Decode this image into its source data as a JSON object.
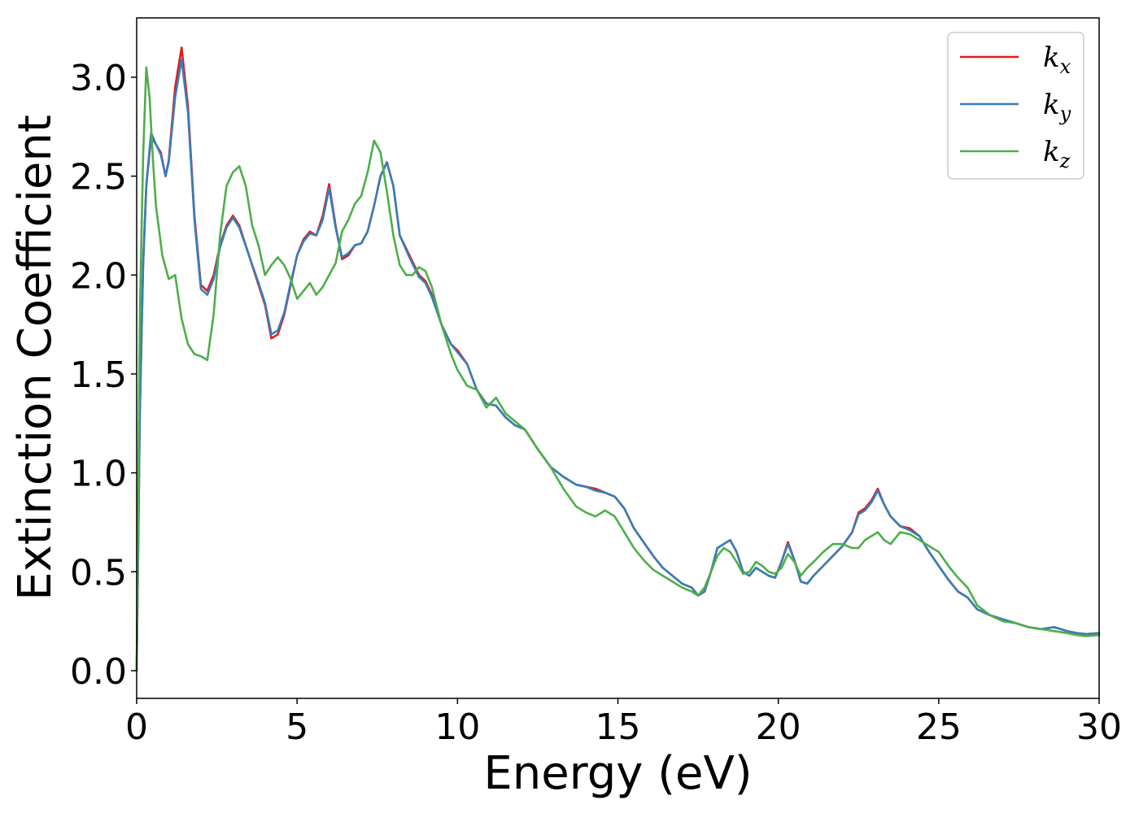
{
  "chart_data": {
    "type": "line",
    "xlabel": "Energy (eV)",
    "ylabel": "Extinction Coefficient",
    "xlim": [
      0,
      30
    ],
    "ylim": [
      -0.14,
      3.3
    ],
    "xticks": [
      0,
      5,
      10,
      15,
      20,
      25,
      30
    ],
    "xtick_labels": [
      "0",
      "5",
      "10",
      "15",
      "20",
      "25",
      "30"
    ],
    "yticks": [
      0.0,
      0.5,
      1.0,
      1.5,
      2.0,
      2.5,
      3.0
    ],
    "ytick_labels": [
      "0.0",
      "0.5",
      "1.0",
      "1.5",
      "2.0",
      "2.5",
      "3.0"
    ],
    "grid": false,
    "legend_position": "top-right",
    "series": [
      {
        "name": "k",
        "subscript": "x",
        "color": "#e41a1c",
        "x": [
          0,
          0.1,
          0.2,
          0.3,
          0.45,
          0.6,
          0.75,
          0.9,
          1.0,
          1.2,
          1.4,
          1.6,
          1.8,
          2.0,
          2.2,
          2.4,
          2.6,
          2.8,
          3.0,
          3.2,
          3.5,
          3.8,
          4.0,
          4.2,
          4.4,
          4.6,
          4.8,
          5.0,
          5.2,
          5.4,
          5.6,
          5.8,
          6.0,
          6.2,
          6.4,
          6.6,
          6.8,
          7.0,
          7.2,
          7.4,
          7.6,
          7.8,
          8.0,
          8.2,
          8.5,
          8.8,
          9.0,
          9.2,
          9.5,
          9.8,
          10.0,
          10.3,
          10.6,
          10.9,
          11.2,
          11.5,
          11.8,
          12.1,
          12.5,
          12.9,
          13.3,
          13.7,
          14.0,
          14.3,
          14.6,
          14.9,
          15.2,
          15.5,
          15.8,
          16.1,
          16.4,
          16.7,
          17.0,
          17.3,
          17.5,
          17.7,
          17.9,
          18.1,
          18.3,
          18.5,
          18.7,
          18.9,
          19.1,
          19.3,
          19.5,
          19.7,
          19.9,
          20.1,
          20.3,
          20.5,
          20.7,
          20.9,
          21.1,
          21.4,
          21.7,
          22.0,
          22.3,
          22.5,
          22.7,
          22.9,
          23.1,
          23.3,
          23.5,
          23.8,
          24.1,
          24.4,
          24.7,
          25.0,
          25.3,
          25.6,
          25.9,
          26.2,
          26.6,
          27.0,
          27.4,
          27.8,
          28.2,
          28.6,
          29.0,
          29.3,
          29.6,
          30.0
        ],
        "y": [
          0.0,
          1.3,
          2.05,
          2.45,
          2.7,
          2.66,
          2.62,
          2.5,
          2.58,
          2.95,
          3.15,
          2.85,
          2.3,
          1.95,
          1.92,
          2.0,
          2.15,
          2.25,
          2.3,
          2.25,
          2.1,
          1.95,
          1.85,
          1.68,
          1.7,
          1.8,
          1.95,
          2.1,
          2.18,
          2.22,
          2.2,
          2.3,
          2.46,
          2.25,
          2.08,
          2.1,
          2.15,
          2.16,
          2.22,
          2.35,
          2.5,
          2.57,
          2.45,
          2.2,
          2.1,
          2.0,
          1.97,
          1.9,
          1.75,
          1.65,
          1.62,
          1.55,
          1.42,
          1.35,
          1.34,
          1.28,
          1.24,
          1.22,
          1.12,
          1.03,
          0.98,
          0.94,
          0.93,
          0.92,
          0.9,
          0.88,
          0.82,
          0.72,
          0.65,
          0.58,
          0.52,
          0.48,
          0.44,
          0.42,
          0.38,
          0.4,
          0.5,
          0.62,
          0.64,
          0.66,
          0.6,
          0.5,
          0.48,
          0.52,
          0.5,
          0.48,
          0.47,
          0.55,
          0.65,
          0.56,
          0.45,
          0.44,
          0.48,
          0.53,
          0.58,
          0.63,
          0.7,
          0.8,
          0.82,
          0.86,
          0.92,
          0.84,
          0.78,
          0.73,
          0.72,
          0.68,
          0.6,
          0.53,
          0.46,
          0.4,
          0.37,
          0.31,
          0.28,
          0.26,
          0.24,
          0.22,
          0.21,
          0.22,
          0.2,
          0.19,
          0.185,
          0.19
        ]
      },
      {
        "name": "k",
        "subscript": "y",
        "color": "#377eb8",
        "x": [
          0,
          0.1,
          0.2,
          0.3,
          0.45,
          0.6,
          0.75,
          0.9,
          1.0,
          1.2,
          1.4,
          1.6,
          1.8,
          2.0,
          2.2,
          2.4,
          2.6,
          2.8,
          3.0,
          3.2,
          3.5,
          3.8,
          4.0,
          4.2,
          4.4,
          4.6,
          4.8,
          5.0,
          5.2,
          5.4,
          5.6,
          5.8,
          6.0,
          6.2,
          6.4,
          6.6,
          6.8,
          7.0,
          7.2,
          7.4,
          7.6,
          7.8,
          8.0,
          8.2,
          8.5,
          8.8,
          9.0,
          9.2,
          9.5,
          9.8,
          10.0,
          10.3,
          10.6,
          10.9,
          11.2,
          11.5,
          11.8,
          12.1,
          12.5,
          12.9,
          13.3,
          13.7,
          14.0,
          14.3,
          14.6,
          14.9,
          15.2,
          15.5,
          15.8,
          16.1,
          16.4,
          16.7,
          17.0,
          17.3,
          17.5,
          17.7,
          17.9,
          18.1,
          18.3,
          18.5,
          18.7,
          18.9,
          19.1,
          19.3,
          19.5,
          19.7,
          19.9,
          20.1,
          20.3,
          20.5,
          20.7,
          20.9,
          21.1,
          21.4,
          21.7,
          22.0,
          22.3,
          22.5,
          22.7,
          22.9,
          23.1,
          23.3,
          23.5,
          23.8,
          24.1,
          24.4,
          24.7,
          25.0,
          25.3,
          25.6,
          25.9,
          26.2,
          26.6,
          27.0,
          27.4,
          27.8,
          28.2,
          28.6,
          29.0,
          29.3,
          29.6,
          30.0
        ],
        "y": [
          0.0,
          1.3,
          2.05,
          2.45,
          2.72,
          2.66,
          2.61,
          2.5,
          2.57,
          2.9,
          3.09,
          2.82,
          2.28,
          1.93,
          1.9,
          1.98,
          2.14,
          2.24,
          2.29,
          2.24,
          2.1,
          1.96,
          1.86,
          1.7,
          1.72,
          1.81,
          1.96,
          2.1,
          2.17,
          2.21,
          2.2,
          2.28,
          2.44,
          2.24,
          2.09,
          2.11,
          2.15,
          2.16,
          2.22,
          2.35,
          2.5,
          2.57,
          2.45,
          2.2,
          2.09,
          1.99,
          1.96,
          1.89,
          1.75,
          1.65,
          1.61,
          1.55,
          1.42,
          1.35,
          1.34,
          1.28,
          1.24,
          1.22,
          1.12,
          1.03,
          0.98,
          0.94,
          0.93,
          0.91,
          0.9,
          0.88,
          0.82,
          0.72,
          0.65,
          0.58,
          0.52,
          0.48,
          0.44,
          0.42,
          0.38,
          0.4,
          0.5,
          0.62,
          0.64,
          0.66,
          0.6,
          0.5,
          0.48,
          0.52,
          0.5,
          0.48,
          0.47,
          0.55,
          0.64,
          0.56,
          0.45,
          0.44,
          0.48,
          0.53,
          0.58,
          0.63,
          0.7,
          0.79,
          0.81,
          0.85,
          0.91,
          0.84,
          0.78,
          0.73,
          0.71,
          0.68,
          0.6,
          0.53,
          0.46,
          0.4,
          0.37,
          0.31,
          0.28,
          0.26,
          0.24,
          0.22,
          0.21,
          0.22,
          0.2,
          0.19,
          0.185,
          0.19
        ]
      },
      {
        "name": "k",
        "subscript": "z",
        "color": "#4daf4a",
        "x": [
          0,
          0.1,
          0.2,
          0.3,
          0.4,
          0.5,
          0.6,
          0.8,
          1.0,
          1.2,
          1.4,
          1.6,
          1.8,
          2.0,
          2.2,
          2.4,
          2.6,
          2.8,
          3.0,
          3.2,
          3.4,
          3.6,
          3.8,
          4.0,
          4.2,
          4.4,
          4.6,
          4.8,
          5.0,
          5.2,
          5.4,
          5.6,
          5.8,
          6.0,
          6.2,
          6.4,
          6.6,
          6.8,
          7.0,
          7.2,
          7.4,
          7.6,
          7.8,
          8.0,
          8.2,
          8.4,
          8.6,
          8.8,
          9.0,
          9.2,
          9.5,
          9.8,
          10.0,
          10.3,
          10.6,
          10.9,
          11.2,
          11.5,
          11.8,
          12.1,
          12.5,
          12.9,
          13.3,
          13.7,
          14.0,
          14.3,
          14.6,
          14.9,
          15.2,
          15.5,
          15.8,
          16.1,
          16.4,
          16.7,
          17.0,
          17.3,
          17.5,
          17.7,
          17.9,
          18.1,
          18.3,
          18.5,
          18.7,
          18.9,
          19.1,
          19.3,
          19.5,
          19.7,
          19.9,
          20.1,
          20.3,
          20.5,
          20.7,
          20.9,
          21.1,
          21.4,
          21.7,
          22.0,
          22.3,
          22.5,
          22.7,
          22.9,
          23.1,
          23.3,
          23.5,
          23.8,
          24.1,
          24.4,
          24.7,
          25.0,
          25.3,
          25.6,
          25.9,
          26.2,
          26.6,
          27.0,
          27.4,
          27.8,
          28.2,
          28.6,
          29.0,
          29.3,
          29.6,
          30.0
        ],
        "y": [
          0.0,
          1.8,
          2.6,
          3.05,
          2.9,
          2.6,
          2.35,
          2.1,
          1.98,
          2.0,
          1.78,
          1.65,
          1.6,
          1.59,
          1.57,
          1.8,
          2.2,
          2.45,
          2.52,
          2.55,
          2.45,
          2.25,
          2.15,
          2.0,
          2.05,
          2.09,
          2.05,
          1.98,
          1.88,
          1.92,
          1.96,
          1.9,
          1.94,
          2.0,
          2.06,
          2.22,
          2.28,
          2.36,
          2.4,
          2.52,
          2.68,
          2.62,
          2.42,
          2.2,
          2.05,
          2.0,
          2.0,
          2.04,
          2.02,
          1.94,
          1.75,
          1.6,
          1.52,
          1.44,
          1.42,
          1.33,
          1.38,
          1.3,
          1.26,
          1.22,
          1.12,
          1.03,
          0.92,
          0.83,
          0.8,
          0.78,
          0.81,
          0.78,
          0.7,
          0.62,
          0.56,
          0.51,
          0.48,
          0.45,
          0.42,
          0.4,
          0.38,
          0.42,
          0.5,
          0.58,
          0.62,
          0.6,
          0.55,
          0.49,
          0.5,
          0.55,
          0.53,
          0.5,
          0.49,
          0.52,
          0.59,
          0.55,
          0.48,
          0.52,
          0.55,
          0.6,
          0.64,
          0.64,
          0.62,
          0.62,
          0.66,
          0.68,
          0.7,
          0.66,
          0.64,
          0.7,
          0.69,
          0.66,
          0.63,
          0.6,
          0.53,
          0.47,
          0.42,
          0.33,
          0.28,
          0.25,
          0.24,
          0.22,
          0.21,
          0.2,
          0.19,
          0.18,
          0.175,
          0.18
        ]
      }
    ]
  }
}
